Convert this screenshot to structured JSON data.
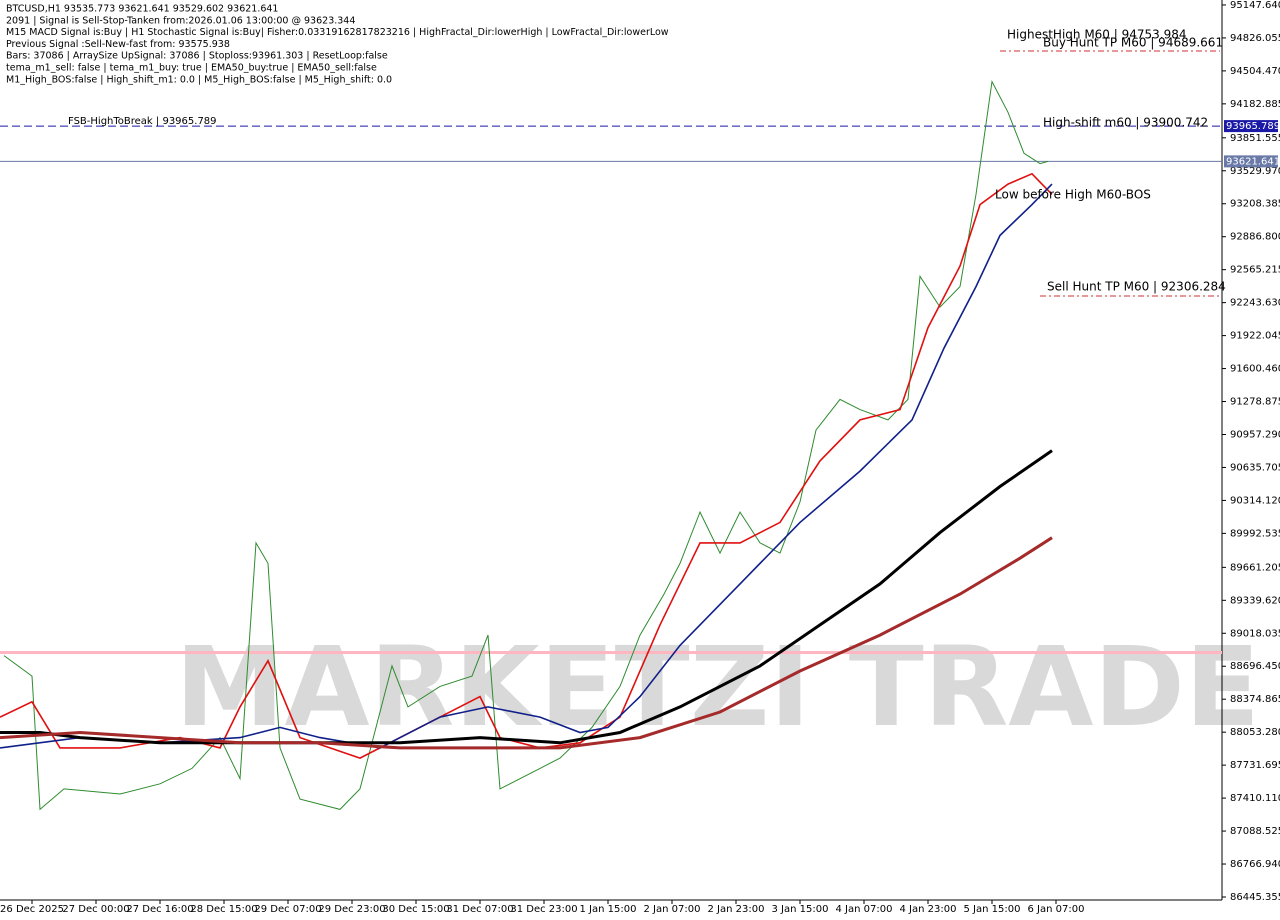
{
  "chart_data": {
    "type": "line",
    "header": [
      "BTCUSD,H1  93535.773 93621.641 93529.602 93621.641",
      "2091 | Signal is Sell-Stop-Tanken from:2026.01.06 13:00:00 @ 93623.344",
      "M15 MACD Signal is:Buy | H1 Stochastic Signal is:Buy| Fisher:0.03319162817823216 | HighFractal_Dir:lowerHigh | LowFractal_Dir:lowerLow",
      "Previous Signal :Sell-New-fast from: 93575.938",
      "Bars: 37086 | ArraySize UpSignal: 37086 | Stoploss:93961.303 | ResetLoop:false",
      "tema_m1_sell: false | tema_m1_buy: true | EMA50_buy:true | EMA50_sell:false",
      "M1_High_BOS:false | High_shift_m1: 0.0 | M5_High_BOS:false | M5_High_shift: 0.0"
    ],
    "annotations": [
      "FSB-HighToBreak | 93965.789",
      "HighestHigh   M60 | 94753.984",
      "Buy Hunt  TP M60 | 94689.661",
      "High-shift m60 | 93900.742",
      "Low before High   M60-BOS",
      "Sell Hunt TP M60 | 92306.284"
    ],
    "watermark": "MARKETZI TRADE",
    "xlim": [
      0,
      305.5
    ],
    "ylim": [
      86416,
      95196
    ],
    "xticks": [
      {
        "value": 8,
        "label": "26 Dec 2025"
      },
      {
        "value": 24,
        "label": "27 Dec 00:00"
      },
      {
        "value": 40,
        "label": "27 Dec 16:00"
      },
      {
        "value": 56,
        "label": "28 Dec 15:00"
      },
      {
        "value": 72,
        "label": "29 Dec 07:00"
      },
      {
        "value": 88,
        "label": "29 Dec 23:00"
      },
      {
        "value": 104,
        "label": "30 Dec 15:00"
      },
      {
        "value": 120,
        "label": "31 Dec 07:00"
      },
      {
        "value": 136,
        "label": "31 Dec 23:00"
      },
      {
        "value": 152,
        "label": "1 Jan 15:00"
      },
      {
        "value": 168,
        "label": "2 Jan 07:00"
      },
      {
        "value": 184,
        "label": "2 Jan 23:00"
      },
      {
        "value": 200,
        "label": "3 Jan 15:00"
      },
      {
        "value": 216,
        "label": "4 Jan 07:00"
      },
      {
        "value": 232,
        "label": "4 Jan 23:00"
      },
      {
        "value": 248,
        "label": "5 Jan 15:00"
      },
      {
        "value": 264,
        "label": "6 Jan 07:00"
      }
    ],
    "yticks": [
      {
        "value": 95147.64,
        "label": "95147.640"
      },
      {
        "value": 94826.055,
        "label": "94826.055"
      },
      {
        "value": 94504.47,
        "label": "94504.470"
      },
      {
        "value": 94182.885,
        "label": "94182.885"
      },
      {
        "value": 93851.555,
        "label": "93851.555"
      },
      {
        "value": 93529.97,
        "label": "93529.970"
      },
      {
        "value": 93208.385,
        "label": "93208.385"
      },
      {
        "value": 92886.8,
        "label": "92886.800"
      },
      {
        "value": 92565.215,
        "label": "92565.215"
      },
      {
        "value": 92243.63,
        "label": "92243.630"
      },
      {
        "value": 91922.045,
        "label": "91922.045"
      },
      {
        "value": 91600.46,
        "label": "91600.460"
      },
      {
        "value": 91278.875,
        "label": "91278.875"
      },
      {
        "value": 90957.29,
        "label": "90957.290"
      },
      {
        "value": 90635.705,
        "label": "90635.705"
      },
      {
        "value": 90314.12,
        "label": "90314.120"
      },
      {
        "value": 89992.535,
        "label": "89992.535"
      },
      {
        "value": 89661.205,
        "label": "89661.205"
      },
      {
        "value": 89339.62,
        "label": "89339.620"
      },
      {
        "value": 89018.035,
        "label": "89018.035"
      },
      {
        "value": 88696.45,
        "label": "88696.450"
      },
      {
        "value": 88374.865,
        "label": "88374.865"
      },
      {
        "value": 88053.28,
        "label": "88053.280"
      },
      {
        "value": 87731.695,
        "label": "87731.695"
      },
      {
        "value": 87410.11,
        "label": "87410.110"
      },
      {
        "value": 87088.525,
        "label": "87088.525"
      },
      {
        "value": 86766.94,
        "label": "86766.940"
      },
      {
        "value": 86445.355,
        "label": "86445.355"
      }
    ],
    "levels": [
      {
        "value": 93965.789,
        "color": "#1a1aa6"
      },
      {
        "value": 93621.641,
        "color": "#6a7aa8"
      }
    ],
    "support_line": 88830,
    "series": [
      {
        "color": "#2e8b2e",
        "width": 1,
        "x": [
          1,
          8,
          10,
          16,
          30,
          40,
          48,
          55,
          60,
          64,
          67,
          70,
          75,
          85,
          90,
          98,
          102,
          110,
          118,
          122,
          125,
          135,
          140,
          148,
          155,
          160,
          166,
          170,
          175,
          180,
          185,
          190,
          195,
          200,
          204,
          210,
          215,
          222,
          227,
          230,
          235,
          240,
          244,
          248,
          252,
          256,
          260,
          262
        ],
        "values": [
          88800,
          88600,
          87300,
          87500,
          87450,
          87550,
          87700,
          88000,
          87600,
          89900,
          89700,
          87900,
          87400,
          87300,
          87500,
          88700,
          88300,
          88500,
          88600,
          89000,
          87500,
          87700,
          87800,
          88100,
          88500,
          89000,
          89400,
          89700,
          90200,
          89800,
          90200,
          89900,
          89800,
          90300,
          91000,
          91300,
          91200,
          91100,
          91300,
          92500,
          92200,
          92400,
          93300,
          94400,
          94100,
          93700,
          93600,
          93621.641
        ]
      },
      {
        "color": "#e01010",
        "width": 1.6,
        "x": [
          0,
          8,
          15,
          30,
          45,
          55,
          60,
          67,
          75,
          90,
          100,
          110,
          120,
          125,
          135,
          145,
          155,
          165,
          175,
          185,
          195,
          205,
          215,
          225,
          232,
          240,
          245,
          252,
          258,
          263
        ],
        "values": [
          88200,
          88350,
          87900,
          87900,
          88000,
          87900,
          88300,
          88750,
          88000,
          87800,
          88000,
          88200,
          88400,
          88000,
          87900,
          87950,
          88200,
          89100,
          89900,
          89900,
          90100,
          90700,
          91100,
          91200,
          92000,
          92600,
          93200,
          93400,
          93500,
          93300
        ]
      },
      {
        "color": "#10208a",
        "width": 1.6,
        "x": [
          0,
          20,
          40,
          60,
          70,
          80,
          95,
          110,
          122,
          135,
          145,
          152,
          160,
          170,
          185,
          200,
          215,
          228,
          236,
          244,
          250,
          258,
          263
        ],
        "values": [
          87900,
          88000,
          87950,
          88000,
          88100,
          88000,
          87900,
          88200,
          88300,
          88200,
          88050,
          88100,
          88400,
          88900,
          89500,
          90100,
          90600,
          91100,
          91800,
          92400,
          92900,
          93200,
          93400
        ]
      },
      {
        "color": "#000000",
        "width": 3,
        "x": [
          0,
          10,
          20,
          40,
          60,
          80,
          100,
          120,
          140,
          155,
          170,
          190,
          205,
          220,
          235,
          250,
          263
        ],
        "values": [
          88050,
          88050,
          88000,
          87950,
          87950,
          87950,
          87950,
          88000,
          87950,
          88050,
          88300,
          88700,
          89100,
          89500,
          90000,
          90450,
          90800
        ]
      },
      {
        "color": "#a52a2a",
        "width": 3,
        "x": [
          0,
          20,
          40,
          60,
          80,
          100,
          120,
          140,
          160,
          180,
          200,
          220,
          240,
          255,
          263
        ],
        "values": [
          88000,
          88050,
          88000,
          87950,
          87950,
          87900,
          87900,
          87900,
          88000,
          88250,
          88650,
          89000,
          89400,
          89750,
          89950
        ]
      }
    ]
  }
}
